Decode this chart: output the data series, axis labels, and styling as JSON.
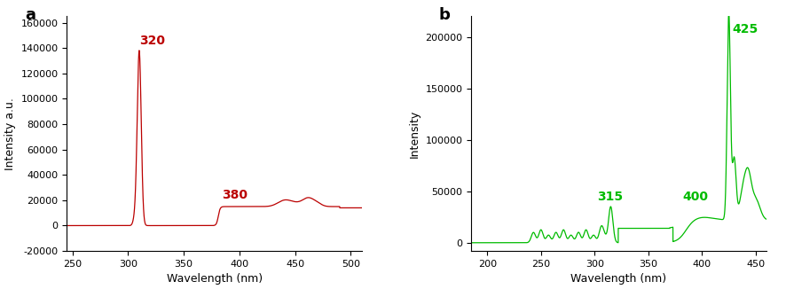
{
  "panel_a": {
    "color": "#BB0000",
    "xlabel": "Wavelength (nm)",
    "ylabel": "Intensity a.u.",
    "xlim": [
      245,
      510
    ],
    "ylim": [
      -20000,
      165000
    ],
    "yticks": [
      -20000,
      0,
      20000,
      40000,
      60000,
      80000,
      100000,
      120000,
      140000,
      160000
    ],
    "xticks": [
      250,
      300,
      350,
      400,
      450,
      500
    ],
    "label": "a",
    "ann1_x": 320,
    "ann1_y": 140000,
    "ann2_x": 380,
    "ann2_y": 17000
  },
  "panel_b": {
    "color": "#00BB00",
    "xlabel": "Wavelength (nm)",
    "ylabel": "Intensity",
    "xlim": [
      185,
      460
    ],
    "ylim": [
      -8000,
      220000
    ],
    "yticks": [
      0,
      50000,
      100000,
      150000,
      200000
    ],
    "xticks": [
      200,
      250,
      300,
      350,
      400,
      450
    ],
    "label": "b",
    "ann1_x": 315,
    "ann1_y": 36000,
    "ann2_x": 400,
    "ann2_y": 36000,
    "ann3_x": 425,
    "ann3_y": 200000
  }
}
